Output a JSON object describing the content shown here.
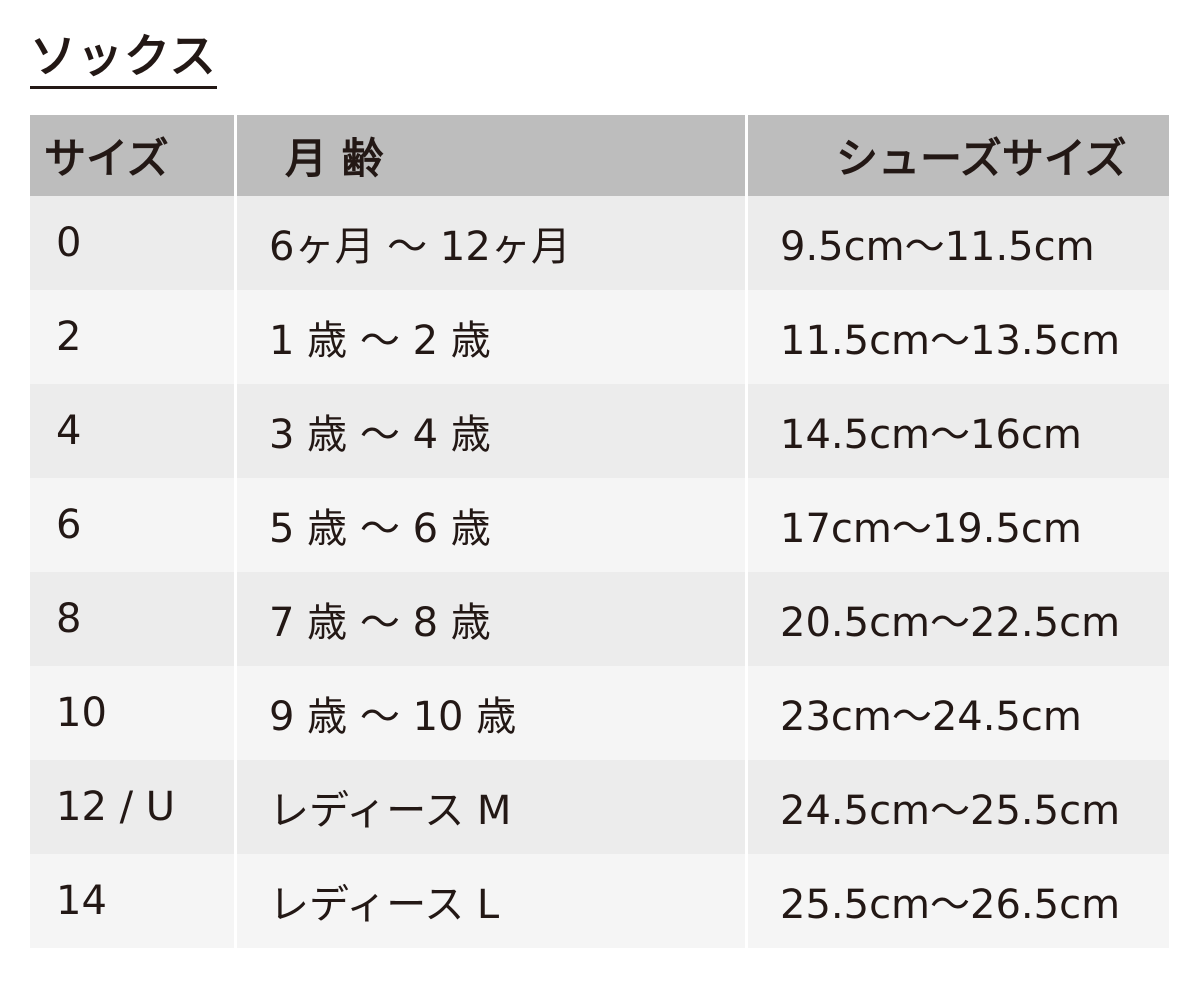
{
  "title": "ソックス",
  "table": {
    "headers": [
      "サイズ",
      "月 齢",
      "シューズサイズ"
    ],
    "rows": [
      [
        "0",
        "6ヶ月 〜 12ヶ月",
        "9.5cm〜11.5cm"
      ],
      [
        "2",
        "1 歳 〜 2 歳",
        "11.5cm〜13.5cm"
      ],
      [
        "4",
        "3 歳 〜 4 歳",
        "14.5cm〜16cm"
      ],
      [
        "6",
        "5 歳 〜 6 歳",
        "17cm〜19.5cm"
      ],
      [
        "8",
        "7 歳 〜 8 歳",
        "20.5cm〜22.5cm"
      ],
      [
        "10",
        "9 歳 〜 10 歳",
        "23cm〜24.5cm"
      ],
      [
        "12 / U",
        "レディース M",
        "24.5cm〜25.5cm"
      ],
      [
        "14",
        "レディース L",
        "25.5cm〜26.5cm"
      ]
    ]
  },
  "colors": {
    "text": "#231815",
    "header_bg": "#bdbdbd",
    "row_odd": "#ececec",
    "row_even": "#f5f5f5"
  }
}
